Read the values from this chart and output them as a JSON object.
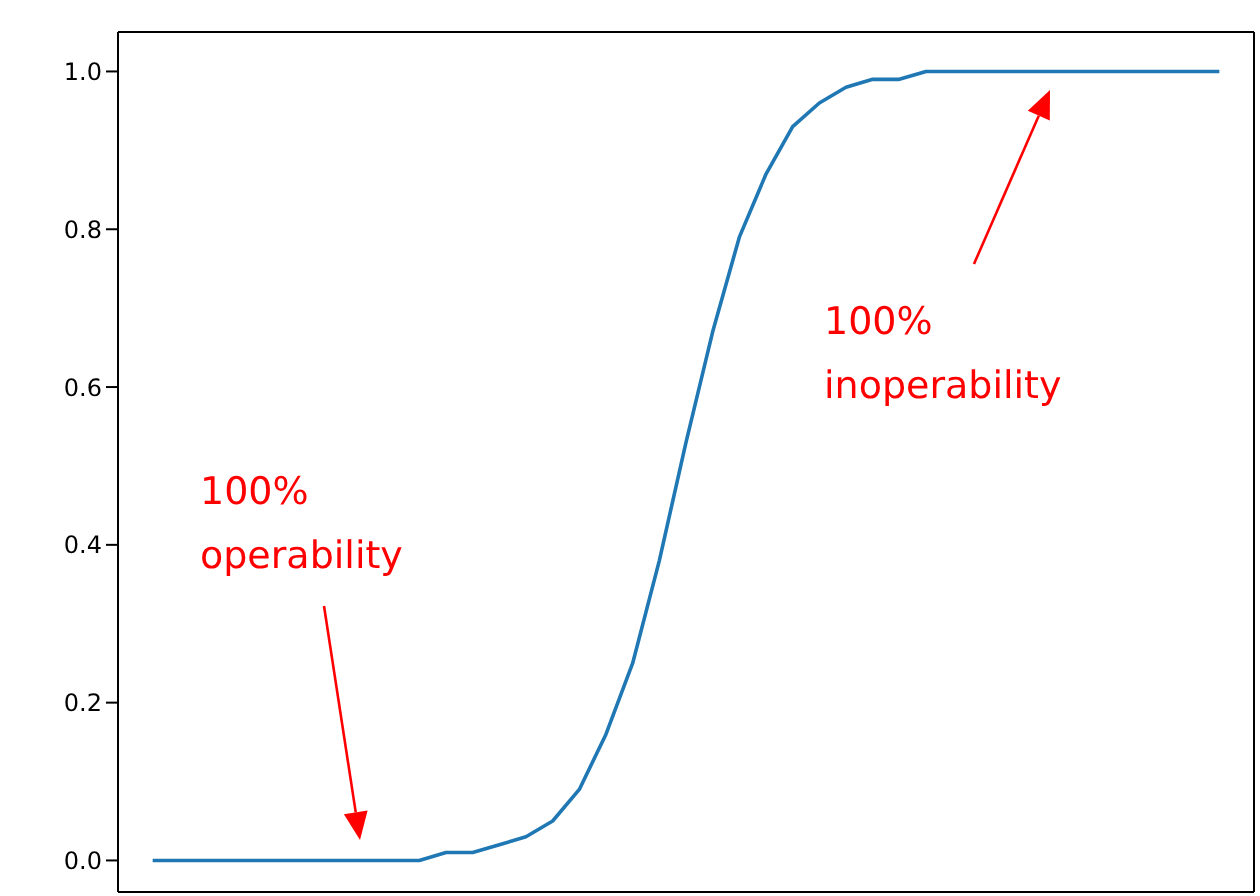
{
  "chart_data": {
    "type": "line",
    "categories": [
      null,
      null,
      null,
      null,
      null,
      null,
      null,
      null,
      null,
      null,
      null,
      null,
      null,
      null,
      null,
      null,
      null,
      null,
      null,
      null,
      null,
      null,
      null,
      null,
      null,
      null,
      null,
      null,
      null,
      null,
      null,
      null,
      null,
      null,
      null,
      null,
      null,
      null,
      null,
      null,
      null
    ],
    "series": [
      {
        "color": "#1f77b4",
        "values": [
          0,
          0,
          0,
          0,
          0,
          0,
          0,
          0,
          0,
          0,
          0,
          0.01,
          0.01,
          0.02,
          0.03,
          0.05,
          0.09,
          0.16,
          0.25,
          0.38,
          0.53,
          0.67,
          0.79,
          0.87,
          0.93,
          0.96,
          0.98,
          0.99,
          0.99,
          1.0,
          1.0,
          1.0,
          1.0,
          1.0,
          1.0,
          1.0,
          1.0,
          1.0,
          1.0,
          1.0,
          1.0
        ]
      }
    ],
    "ylim": [
      -0.04,
      1.05
    ],
    "yticks": [
      {
        "value": 0,
        "label": "0.0"
      },
      {
        "value": 0.2,
        "label": "0.2"
      },
      {
        "value": 0.4,
        "label": "0.4"
      },
      {
        "value": 0.6,
        "label": "0.6"
      },
      {
        "value": 0.8,
        "label": "0.8"
      },
      {
        "value": 1,
        "label": "1.0"
      }
    ],
    "annotations": [
      "100%\noperability",
      "100%\ninoperability"
    ],
    "tick_labels": "y",
    "grid": false,
    "marker": "none",
    "line_style": "solid"
  }
}
